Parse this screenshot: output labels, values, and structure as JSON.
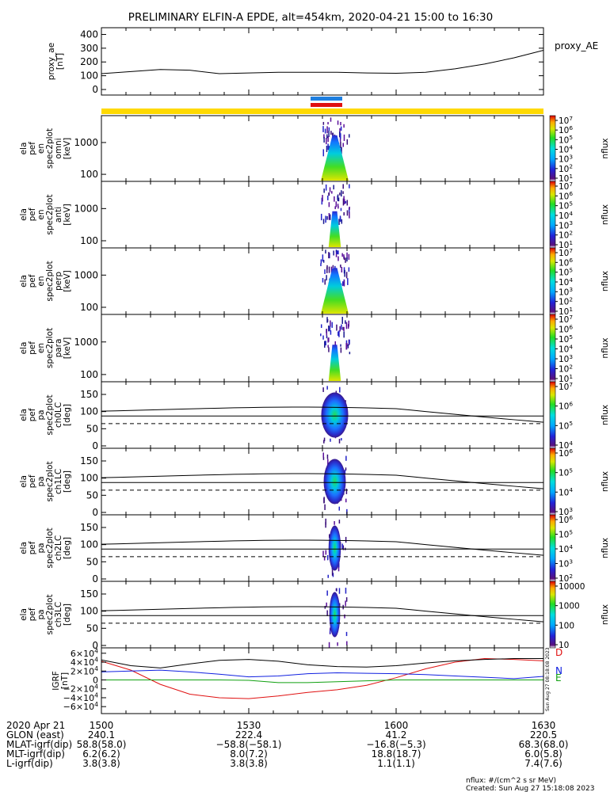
{
  "title": "PRELIMINARY ELFIN-A EPDE, alt=454km, 2020-04-21 15:00 to 16:30",
  "panels": [
    {
      "kind": "line",
      "ylabel": [
        "proxy_ae",
        "[nT]"
      ],
      "yticks": [
        "400",
        "300",
        "200",
        "100",
        "0"
      ],
      "legend": "proxy_AE"
    },
    {
      "kind": "energy",
      "ylabel": [
        "ela",
        "pef",
        "en",
        "spec2plot",
        "omni",
        "[keV]"
      ],
      "yticks": [
        "1000",
        "100"
      ],
      "cbticks": [
        "10^7",
        "10^6",
        "10^5",
        "10^4",
        "10^3",
        "10^2",
        "10^1"
      ],
      "cblabel": "nflux"
    },
    {
      "kind": "energy",
      "ylabel": [
        "ela",
        "pef",
        "en",
        "spec2plot",
        "anti",
        "[keV]"
      ],
      "yticks": [
        "1000",
        "100"
      ],
      "cbticks": [
        "10^7",
        "10^6",
        "10^5",
        "10^4",
        "10^3",
        "10^2",
        "10^1"
      ],
      "cblabel": "nflux"
    },
    {
      "kind": "energy",
      "ylabel": [
        "ela",
        "pef",
        "en",
        "spec2plot",
        "perp",
        "[keV]"
      ],
      "yticks": [
        "1000",
        "100"
      ],
      "cbticks": [
        "10^7",
        "10^6",
        "10^5",
        "10^4",
        "10^3",
        "10^2",
        "10^1"
      ],
      "cblabel": "nflux"
    },
    {
      "kind": "energy",
      "ylabel": [
        "ela",
        "pef",
        "en",
        "spec2plot",
        "para",
        "[keV]"
      ],
      "yticks": [
        "1000",
        "100"
      ],
      "cbticks": [
        "10^7",
        "10^6",
        "10^5",
        "10^4",
        "10^3",
        "10^2",
        "10^1"
      ],
      "cblabel": "nflux"
    },
    {
      "kind": "pa",
      "ylabel": [
        "ela",
        "pef",
        "pa",
        "spec2plot",
        "ch0LC",
        "[deg]"
      ],
      "yticks": [
        "150",
        "100",
        "50",
        "0"
      ],
      "cbticks": [
        "10^7",
        "10^6",
        "10^5",
        "10^4"
      ],
      "cblabel": "nflux"
    },
    {
      "kind": "pa",
      "ylabel": [
        "ela",
        "pef",
        "pa",
        "spec2plot",
        "ch1LC",
        "[deg]"
      ],
      "yticks": [
        "150",
        "100",
        "50",
        "0"
      ],
      "cbticks": [
        "10^6",
        "10^5",
        "10^4",
        "10^3"
      ],
      "cblabel": "nflux"
    },
    {
      "kind": "pa",
      "ylabel": [
        "ela",
        "pef",
        "pa",
        "spec2plot",
        "ch2LC",
        "[deg]"
      ],
      "yticks": [
        "150",
        "100",
        "50",
        "0"
      ],
      "cbticks": [
        "10^6",
        "10^5",
        "10^4",
        "10^3",
        "10^2"
      ],
      "cblabel": "nflux"
    },
    {
      "kind": "pa",
      "ylabel": [
        "ela",
        "pef",
        "pa",
        "spec2plot",
        "ch3LC",
        "[deg]"
      ],
      "yticks": [
        "150",
        "100",
        "50",
        "0"
      ],
      "cbticks": [
        "10000",
        "1000",
        "100",
        "10"
      ],
      "cblabel": "nflux"
    },
    {
      "kind": "igrf",
      "ylabel": [
        "IGRF",
        "[nT]"
      ],
      "yticks": [
        "6×10^4",
        "4×10^4",
        "2×10^4",
        "0",
        "−2×10^4",
        "−4×10^4",
        "−6×10^4"
      ],
      "components": [
        "D",
        "N",
        "E"
      ]
    }
  ],
  "footer": {
    "rows": [
      {
        "label": "2020 Apr 21",
        "values": [
          "1500",
          "1530",
          "1600",
          "1630"
        ]
      },
      {
        "label": "GLON (east)",
        "values": [
          "240.1",
          "222.4",
          "41.2",
          "220.5"
        ]
      },
      {
        "label": "MLAT-igrf(dip)",
        "values": [
          "58.8(58.0)",
          "−58.8(−58.1)",
          "−16.8(−5.3)",
          "68.3(68.0)"
        ]
      },
      {
        "label": "MLT-igrf(dip)",
        "values": [
          "6.2(6.2)",
          "8.0(7.2)",
          "18.8(18.7)",
          "6.0(5.8)"
        ]
      },
      {
        "label": "L-igrf(dip)",
        "values": [
          "3.8(3.8)",
          "3.8(3.8)",
          "1.1(1.1)",
          "7.4(7.6)"
        ]
      }
    ],
    "units_note": "nflux: #/(cm^2 s sr MeV)",
    "created": "Created: Sun Aug 27 15:18:08 2023",
    "side_stamp": "Sun Aug 27 08:18:08 2023"
  },
  "chart_data": [
    {
      "type": "line",
      "ylabel": "proxy_ae [nT]",
      "ylim": [
        0,
        420
      ],
      "x": [
        "15:00",
        "15:06",
        "15:12",
        "15:18",
        "15:24",
        "15:30",
        "15:36",
        "15:42",
        "15:48",
        "15:54",
        "16:00",
        "16:06",
        "16:12",
        "16:18",
        "16:24",
        "16:30"
      ],
      "series": [
        {
          "name": "proxy_AE",
          "values": [
            115,
            130,
            145,
            140,
            115,
            120,
            125,
            125,
            125,
            120,
            118,
            125,
            150,
            185,
            230,
            285
          ]
        }
      ]
    },
    {
      "type": "heatmap",
      "title": "ela pef en spec2plot (omni/anti/perp/para)",
      "ylabel": "[keV]",
      "yscale": "log",
      "yrange": [
        60,
        7000
      ],
      "active_time_window": [
        "15:45",
        "15:50"
      ],
      "color_scale": "nflux, log, 10^1 to 10^7"
    },
    {
      "type": "heatmap",
      "title": "ela pef pa spec2plot (ch0LC/ch1LC/ch2LC/ch3LC)",
      "ylabel": "[deg]",
      "ylim": [
        0,
        180
      ],
      "active_time_window": [
        "15:45",
        "15:50"
      ],
      "boundary_curves": {
        "solid_lower": 97,
        "solid_upper_peak": 113,
        "dashed": 65
      }
    },
    {
      "type": "line",
      "ylabel": "IGRF [nT]",
      "ylim": [
        -65000,
        65000
      ],
      "x": [
        "15:00",
        "15:06",
        "15:12",
        "15:18",
        "15:24",
        "15:30",
        "15:36",
        "15:42",
        "15:48",
        "15:54",
        "16:00",
        "16:06",
        "16:12",
        "16:18",
        "16:24",
        "16:30"
      ],
      "series": [
        {
          "name": "D",
          "values": [
            42000,
            22000,
            -10000,
            -32000,
            -40000,
            -42000,
            -36000,
            -28000,
            -22000,
            -12000,
            5000,
            25000,
            40000,
            48000,
            46000,
            43000
          ]
        },
        {
          "name": "N",
          "values": [
            18000,
            20000,
            22000,
            18000,
            13000,
            7000,
            9000,
            14000,
            16000,
            15000,
            14000,
            12000,
            9000,
            6000,
            3000,
            8000
          ]
        },
        {
          "name": "E",
          "values": [
            0,
            0,
            0,
            0,
            0,
            -1000,
            -6000,
            -6000,
            -4000,
            -2000,
            0,
            0,
            0,
            0,
            0,
            0
          ]
        },
        {
          "name": "total",
          "values": [
            45000,
            32000,
            27000,
            36000,
            44000,
            46000,
            42000,
            34000,
            30000,
            29000,
            32000,
            38000,
            43000,
            46000,
            48000,
            48000
          ]
        }
      ]
    }
  ]
}
